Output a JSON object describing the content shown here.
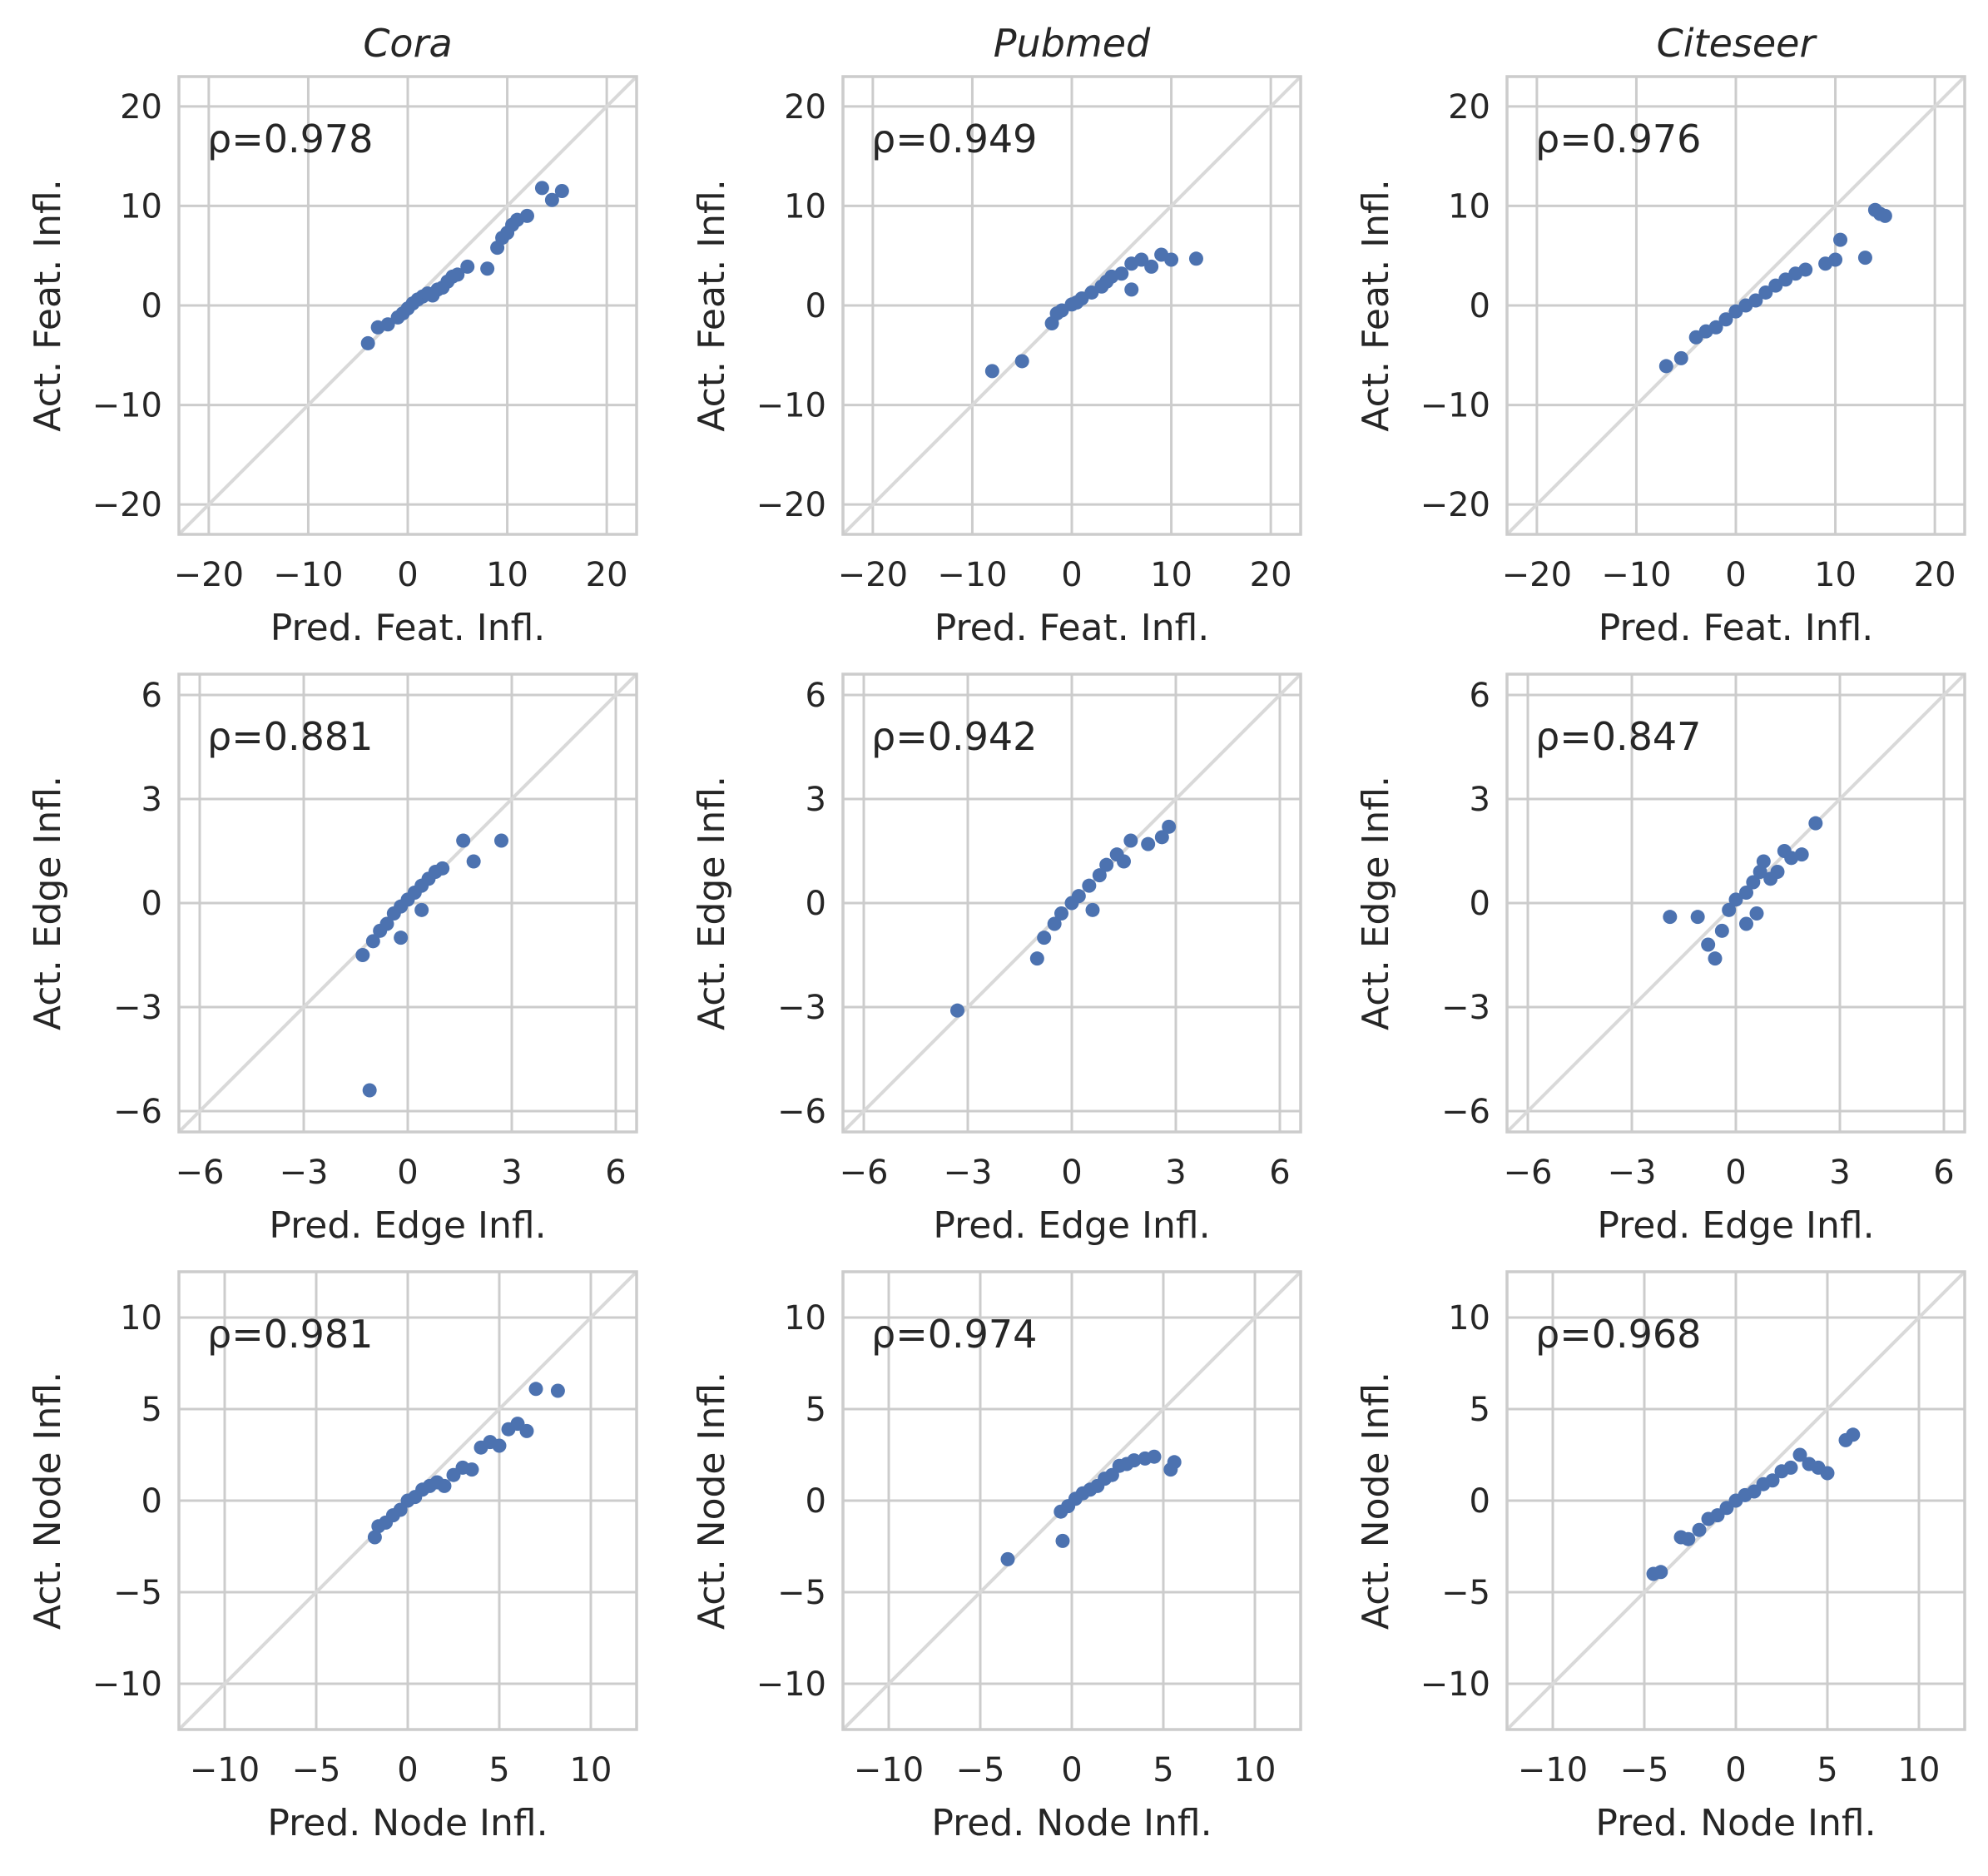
{
  "figure": {
    "colors": {
      "point": "#4c72b0",
      "grid": "#cccccc",
      "frame": "#cccccc",
      "diagonal": "#d9d9d9",
      "text": "#262626"
    }
  },
  "chart_data": [
    {
      "type": "scatter",
      "title": "Cora",
      "xlabel": "Pred. Feat. Infl.",
      "ylabel": "Act. Feat. Infl.",
      "rho": "ρ=0.978",
      "xlim": [
        -23,
        23
      ],
      "ylim": [
        -23,
        23
      ],
      "ticks": [
        -20,
        -10,
        0,
        10,
        20
      ],
      "ticklabels": [
        "−20",
        "−10",
        "0",
        "10",
        "20"
      ],
      "points": [
        [
          -4,
          -3.8
        ],
        [
          -3,
          -2.2
        ],
        [
          -2,
          -1.9
        ],
        [
          -1,
          -1.2
        ],
        [
          -0.5,
          -0.8
        ],
        [
          0,
          -0.3
        ],
        [
          0.5,
          0.2
        ],
        [
          1,
          0.6
        ],
        [
          1.5,
          0.9
        ],
        [
          2,
          1.2
        ],
        [
          2.5,
          1.0
        ],
        [
          3,
          1.6
        ],
        [
          3.5,
          1.8
        ],
        [
          4,
          2.4
        ],
        [
          4.5,
          2.9
        ],
        [
          5,
          3.1
        ],
        [
          6,
          3.9
        ],
        [
          8,
          3.7
        ],
        [
          9,
          5.8
        ],
        [
          9.5,
          6.8
        ],
        [
          10,
          7.3
        ],
        [
          10.5,
          8.1
        ],
        [
          11,
          8.6
        ],
        [
          12,
          9.0
        ],
        [
          13.5,
          11.8
        ],
        [
          14.5,
          10.6
        ],
        [
          15.5,
          11.5
        ]
      ]
    },
    {
      "type": "scatter",
      "title": "Pubmed",
      "xlabel": "Pred. Feat. Infl.",
      "ylabel": "Act. Feat. Infl.",
      "rho": "ρ=0.949",
      "xlim": [
        -23,
        23
      ],
      "ylim": [
        -23,
        23
      ],
      "ticks": [
        -20,
        -10,
        0,
        10,
        20
      ],
      "ticklabels": [
        "−20",
        "−10",
        "0",
        "10",
        "20"
      ],
      "points": [
        [
          -8,
          -6.6
        ],
        [
          -5,
          -5.6
        ],
        [
          -2,
          -1.8
        ],
        [
          -1.5,
          -0.8
        ],
        [
          -1,
          -0.5
        ],
        [
          0,
          0.1
        ],
        [
          0.5,
          0.3
        ],
        [
          1,
          0.7
        ],
        [
          2,
          1.3
        ],
        [
          3,
          1.9
        ],
        [
          3.5,
          2.4
        ],
        [
          4,
          2.9
        ],
        [
          5,
          3.2
        ],
        [
          6,
          1.6
        ],
        [
          6,
          4.2
        ],
        [
          7,
          4.6
        ],
        [
          8,
          3.9
        ],
        [
          9,
          5.1
        ],
        [
          10,
          4.6
        ],
        [
          12.5,
          4.7
        ]
      ]
    },
    {
      "type": "scatter",
      "title": "Citeseer",
      "xlabel": "Pred. Feat. Infl.",
      "ylabel": "Act. Feat. Infl.",
      "rho": "ρ=0.976",
      "xlim": [
        -23,
        23
      ],
      "ylim": [
        -23,
        23
      ],
      "ticks": [
        -20,
        -10,
        0,
        10,
        20
      ],
      "ticklabels": [
        "−20",
        "−10",
        "0",
        "10",
        "20"
      ],
      "points": [
        [
          -7,
          -6.1
        ],
        [
          -5.5,
          -5.3
        ],
        [
          -4,
          -3.2
        ],
        [
          -3,
          -2.6
        ],
        [
          -2,
          -2.2
        ],
        [
          -1,
          -1.4
        ],
        [
          0,
          -0.6
        ],
        [
          1,
          0.0
        ],
        [
          2,
          0.5
        ],
        [
          3,
          1.3
        ],
        [
          4,
          2.0
        ],
        [
          5,
          2.6
        ],
        [
          6,
          3.2
        ],
        [
          7,
          3.6
        ],
        [
          9,
          4.2
        ],
        [
          10,
          4.6
        ],
        [
          10.5,
          6.6
        ],
        [
          13,
          4.8
        ],
        [
          14,
          9.6
        ],
        [
          14.5,
          9.2
        ],
        [
          15,
          9.0
        ]
      ]
    },
    {
      "type": "scatter",
      "title": "",
      "xlabel": "Pred. Edge Infl.",
      "ylabel": "Act. Edge Infl.",
      "rho": "ρ=0.881",
      "xlim": [
        -6.6,
        6.6
      ],
      "ylim": [
        -6.6,
        6.6
      ],
      "ticks": [
        -6,
        -3,
        0,
        3,
        6
      ],
      "ticklabels": [
        "−6",
        "−3",
        "0",
        "3",
        "6"
      ],
      "points": [
        [
          -1.3,
          -1.5
        ],
        [
          -1.0,
          -1.1
        ],
        [
          -0.8,
          -0.8
        ],
        [
          -0.6,
          -0.6
        ],
        [
          -0.4,
          -0.3
        ],
        [
          -0.2,
          -0.1
        ],
        [
          0,
          0.1
        ],
        [
          0.2,
          0.3
        ],
        [
          0.4,
          0.5
        ],
        [
          0.6,
          0.7
        ],
        [
          0.8,
          0.9
        ],
        [
          1.0,
          1.0
        ],
        [
          -0.2,
          -1.0
        ],
        [
          0.4,
          -0.2
        ],
        [
          1.6,
          1.8
        ],
        [
          1.9,
          1.2
        ],
        [
          2.7,
          1.8
        ],
        [
          -1.1,
          -5.4
        ]
      ]
    },
    {
      "type": "scatter",
      "title": "",
      "xlabel": "Pred. Edge Infl.",
      "ylabel": "Act. Edge Infl.",
      "rho": "ρ=0.942",
      "xlim": [
        -6.6,
        6.6
      ],
      "ylim": [
        -6.6,
        6.6
      ],
      "ticks": [
        -6,
        -3,
        0,
        3,
        6
      ],
      "ticklabels": [
        "−6",
        "−3",
        "0",
        "3",
        "6"
      ],
      "points": [
        [
          -3.3,
          -3.1
        ],
        [
          -1.0,
          -1.6
        ],
        [
          -0.8,
          -1.0
        ],
        [
          -0.5,
          -0.6
        ],
        [
          -0.3,
          -0.3
        ],
        [
          0,
          0
        ],
        [
          0.2,
          0.2
        ],
        [
          0.5,
          0.5
        ],
        [
          0.8,
          0.8
        ],
        [
          1.0,
          1.1
        ],
        [
          1.3,
          1.4
        ],
        [
          0.6,
          -0.2
        ],
        [
          1.5,
          1.2
        ],
        [
          1.7,
          1.8
        ],
        [
          2.2,
          1.7
        ],
        [
          2.6,
          1.9
        ],
        [
          2.8,
          2.2
        ]
      ]
    },
    {
      "type": "scatter",
      "title": "",
      "xlabel": "Pred. Edge Infl.",
      "ylabel": "Act. Edge Infl.",
      "rho": "ρ=0.847",
      "xlim": [
        -6.6,
        6.6
      ],
      "ylim": [
        -6.6,
        6.6
      ],
      "ticks": [
        -6,
        -3,
        0,
        3,
        6
      ],
      "ticklabels": [
        "−6",
        "−3",
        "0",
        "3",
        "6"
      ],
      "points": [
        [
          -1.9,
          -0.4
        ],
        [
          -1.1,
          -0.4
        ],
        [
          -0.8,
          -1.2
        ],
        [
          -0.6,
          -1.6
        ],
        [
          -0.4,
          -0.8
        ],
        [
          -0.2,
          -0.2
        ],
        [
          0,
          0.1
        ],
        [
          0.3,
          0.3
        ],
        [
          0.5,
          0.6
        ],
        [
          0.7,
          0.9
        ],
        [
          0.8,
          1.2
        ],
        [
          1.0,
          0.7
        ],
        [
          1.2,
          0.9
        ],
        [
          1.4,
          1.5
        ],
        [
          1.6,
          1.3
        ],
        [
          1.9,
          1.4
        ],
        [
          2.3,
          2.3
        ],
        [
          0.3,
          -0.6
        ],
        [
          0.6,
          -0.3
        ]
      ]
    },
    {
      "type": "scatter",
      "title": "",
      "xlabel": "Pred. Node Infl.",
      "ylabel": "Act. Node Infl.",
      "rho": "ρ=0.981",
      "xlim": [
        -12.5,
        12.5
      ],
      "ylim": [
        -12.5,
        12.5
      ],
      "ticks": [
        -10,
        -5,
        0,
        5,
        10
      ],
      "ticklabels": [
        "−10",
        "−5",
        "0",
        "5",
        "10"
      ],
      "points": [
        [
          -1.8,
          -2.0
        ],
        [
          -1.6,
          -1.4
        ],
        [
          -1.2,
          -1.2
        ],
        [
          -0.8,
          -0.8
        ],
        [
          -0.4,
          -0.5
        ],
        [
          0,
          0
        ],
        [
          0.4,
          0.2
        ],
        [
          0.8,
          0.6
        ],
        [
          1.2,
          0.8
        ],
        [
          1.6,
          1.0
        ],
        [
          2.0,
          0.8
        ],
        [
          2.5,
          1.4
        ],
        [
          3,
          1.8
        ],
        [
          3.5,
          1.7
        ],
        [
          4,
          2.9
        ],
        [
          4.5,
          3.2
        ],
        [
          5,
          3.0
        ],
        [
          5.5,
          3.9
        ],
        [
          6,
          4.2
        ],
        [
          6.5,
          3.8
        ],
        [
          7,
          6.1
        ],
        [
          8.2,
          6.0
        ]
      ]
    },
    {
      "type": "scatter",
      "title": "",
      "xlabel": "Pred. Node Infl.",
      "ylabel": "Act. Node Infl.",
      "rho": "ρ=0.974",
      "xlim": [
        -12.5,
        12.5
      ],
      "ylim": [
        -12.5,
        12.5
      ],
      "ticks": [
        -10,
        -5,
        0,
        5,
        10
      ],
      "ticklabels": [
        "−10",
        "−5",
        "0",
        "5",
        "10"
      ],
      "points": [
        [
          -3.5,
          -3.2
        ],
        [
          -0.5,
          -2.2
        ],
        [
          -0.6,
          -0.6
        ],
        [
          -0.2,
          -0.3
        ],
        [
          0.2,
          0.1
        ],
        [
          0.6,
          0.4
        ],
        [
          1.0,
          0.6
        ],
        [
          1.4,
          0.8
        ],
        [
          1.8,
          1.2
        ],
        [
          2.2,
          1.4
        ],
        [
          2.6,
          1.9
        ],
        [
          3.0,
          2.0
        ],
        [
          3.4,
          2.2
        ],
        [
          4,
          2.3
        ],
        [
          4.5,
          2.4
        ],
        [
          5.4,
          1.7
        ],
        [
          5.6,
          2.1
        ]
      ]
    },
    {
      "type": "scatter",
      "title": "",
      "xlabel": "Pred. Node Infl.",
      "ylabel": "Act. Node Infl.",
      "rho": "ρ=0.968",
      "xlim": [
        -12.5,
        12.5
      ],
      "ylim": [
        -12.5,
        12.5
      ],
      "ticks": [
        -10,
        -5,
        0,
        5,
        10
      ],
      "ticklabels": [
        "−10",
        "−5",
        "0",
        "5",
        "10"
      ],
      "points": [
        [
          -4.5,
          -4.0
        ],
        [
          -4.1,
          -3.9
        ],
        [
          -3,
          -2.0
        ],
        [
          -2.6,
          -2.1
        ],
        [
          -2,
          -1.6
        ],
        [
          -1.5,
          -1.0
        ],
        [
          -1,
          -0.8
        ],
        [
          -0.5,
          -0.4
        ],
        [
          0,
          0
        ],
        [
          0.5,
          0.3
        ],
        [
          1,
          0.5
        ],
        [
          1.5,
          0.9
        ],
        [
          2,
          1.1
        ],
        [
          2.5,
          1.6
        ],
        [
          3,
          1.8
        ],
        [
          3.5,
          2.5
        ],
        [
          4,
          2.0
        ],
        [
          4.5,
          1.8
        ],
        [
          5,
          1.5
        ],
        [
          6,
          3.3
        ],
        [
          6.4,
          3.6
        ]
      ]
    }
  ]
}
